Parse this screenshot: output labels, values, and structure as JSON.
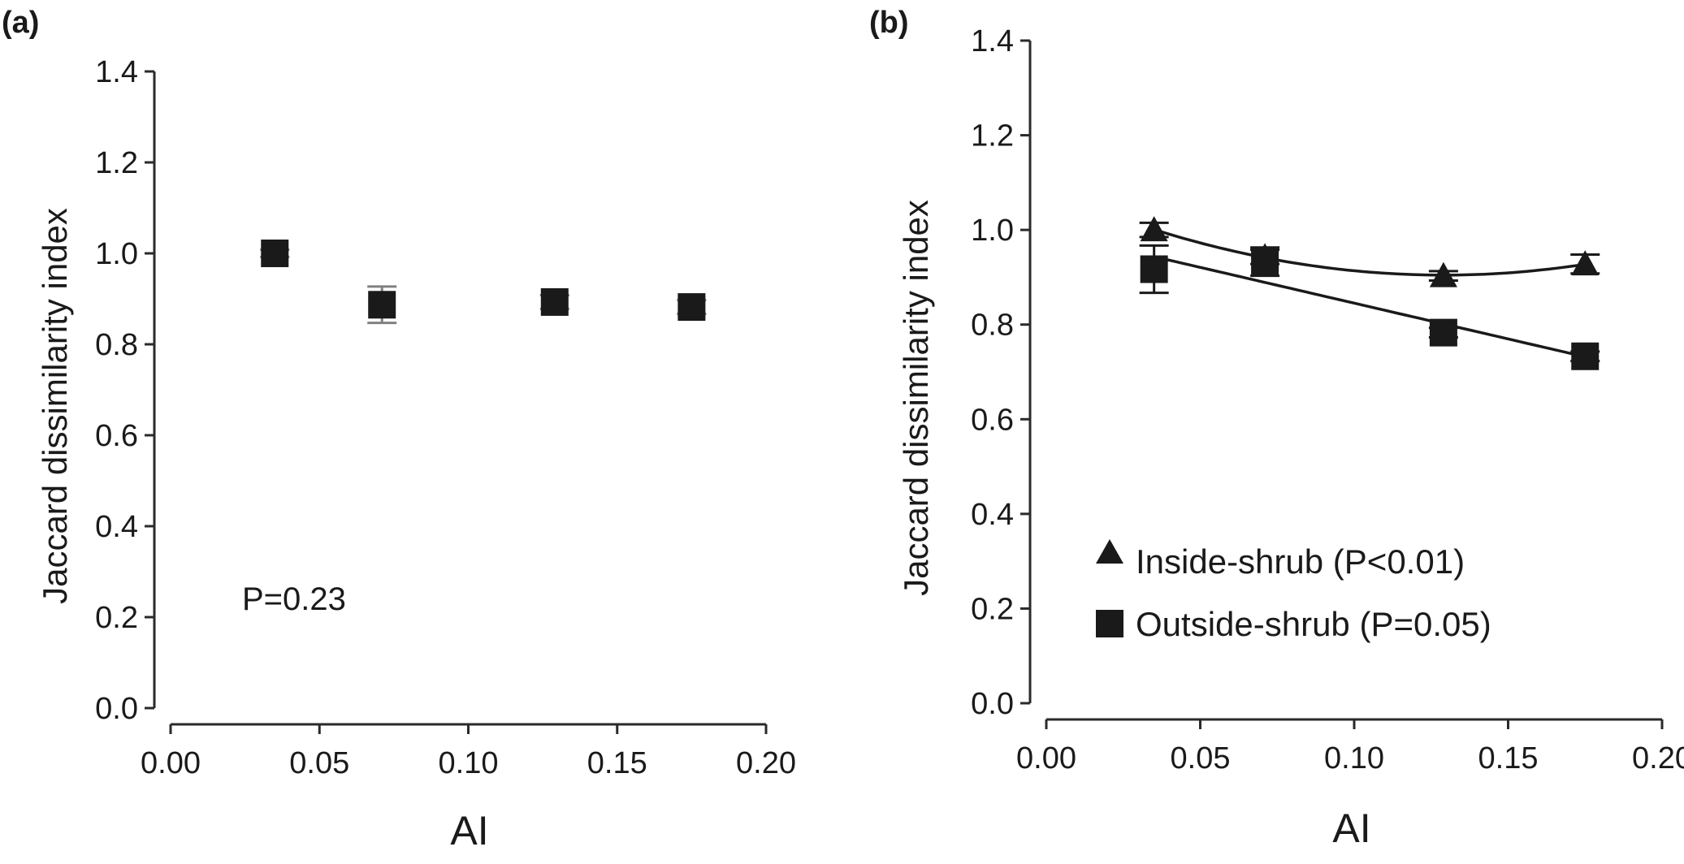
{
  "chart_data": [
    {
      "type": "scatter",
      "panel_label": "(a)",
      "xlabel": "AI",
      "ylabel": "Jaccard dissimilarity index",
      "xlim": [
        0,
        0.2
      ],
      "ylim": [
        0,
        1.4
      ],
      "xticks": [
        "0.00",
        "0.05",
        "0.10",
        "0.15",
        "0.20"
      ],
      "yticks": [
        "0.0",
        "0.2",
        "0.4",
        "0.6",
        "0.8",
        "1.0",
        "1.2",
        "1.4"
      ],
      "annotation": "P=0.23",
      "grid": false,
      "series": [
        {
          "marker": "square",
          "color": "#1a1a1a",
          "errorbar_color": "#808080",
          "points": [
            {
              "x": 0.035,
              "y": 1.0,
              "err": 0.008
            },
            {
              "x": 0.071,
              "y": 0.887,
              "err": 0.04
            },
            {
              "x": 0.129,
              "y": 0.893,
              "err": 0.015
            },
            {
              "x": 0.175,
              "y": 0.882,
              "err": 0.015
            }
          ]
        }
      ]
    },
    {
      "type": "line",
      "panel_label": "(b)",
      "xlabel": "AI",
      "ylabel": "Jaccard dissimilarity index",
      "xlim": [
        0,
        0.2
      ],
      "ylim": [
        0,
        1.4
      ],
      "xticks": [
        "0.00",
        "0.05",
        "0.10",
        "0.15",
        "0.20"
      ],
      "yticks": [
        "0.0",
        "0.2",
        "0.4",
        "0.6",
        "0.8",
        "1.0",
        "1.2",
        "1.4"
      ],
      "legend_position": "bottom-left",
      "grid": false,
      "series": [
        {
          "name": "Inside-shrub (P<0.01)",
          "marker": "triangle",
          "color": "#1a1a1a",
          "fit": "quadratic",
          "points": [
            {
              "x": 0.035,
              "y": 1.0,
              "err": 0.015
            },
            {
              "x": 0.071,
              "y": 0.943,
              "err": 0.015
            },
            {
              "x": 0.129,
              "y": 0.903,
              "err": 0.01
            },
            {
              "x": 0.175,
              "y": 0.928,
              "err": 0.02
            }
          ]
        },
        {
          "name": "Outside-shrub (P=0.05)",
          "marker": "square",
          "color": "#1a1a1a",
          "fit": "linear",
          "points": [
            {
              "x": 0.035,
              "y": 0.917,
              "err": 0.05
            },
            {
              "x": 0.071,
              "y": 0.933,
              "err": 0.03
            },
            {
              "x": 0.129,
              "y": 0.783,
              "err": 0.01
            },
            {
              "x": 0.175,
              "y": 0.733,
              "err": 0.01
            }
          ]
        }
      ]
    }
  ]
}
